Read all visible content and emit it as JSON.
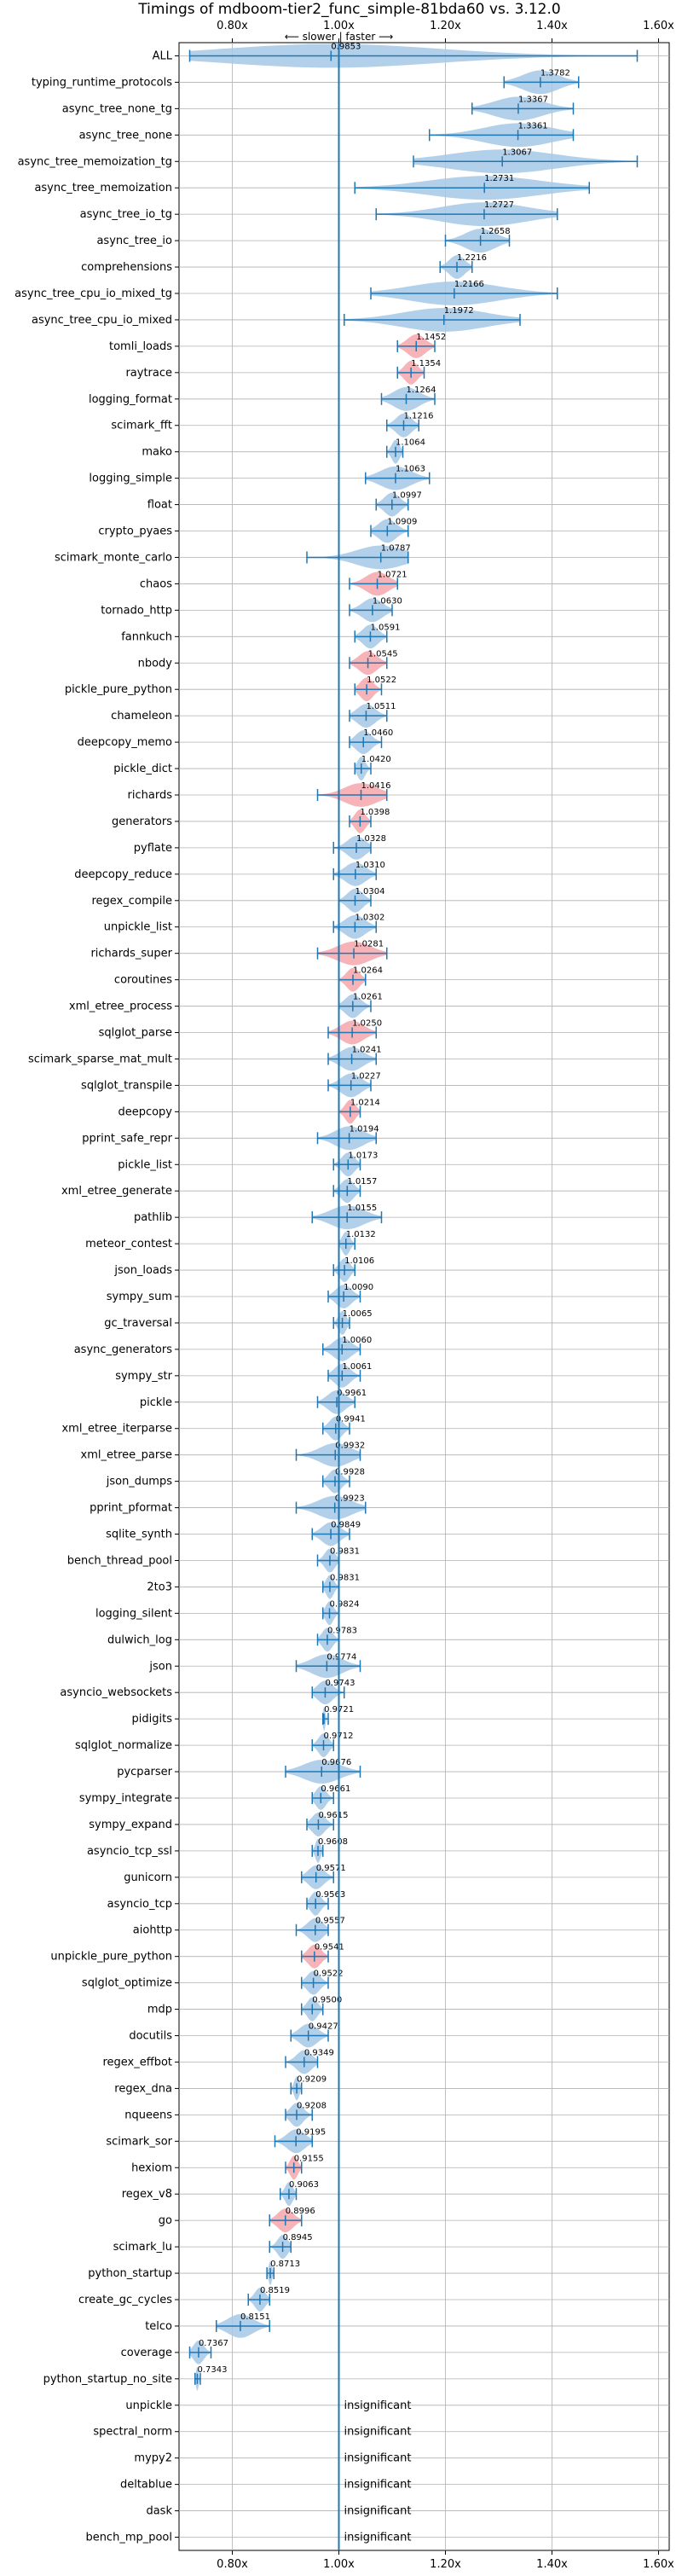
{
  "chart_data": {
    "type": "violin",
    "title": "Timings of mdboom-tier2_func_simple-81bda60 vs. 3.12.0",
    "direction_label": "⟵ slower | faster ⟶",
    "xlim": [
      0.7,
      1.62
    ],
    "xticks": [
      {
        "value": 0.8,
        "label": "0.80x"
      },
      {
        "value": 1.0,
        "label": "1.00x"
      },
      {
        "value": 1.2,
        "label": "1.20x"
      },
      {
        "value": 1.4,
        "label": "1.40x"
      },
      {
        "value": 1.6,
        "label": "1.60x"
      }
    ],
    "reference_line": 1.0,
    "grid": true,
    "colors": {
      "violin_default": "#a6c8e6",
      "violin_highlight": "#f4a6ab",
      "whisker": "#1f77b4",
      "grid": "#b0b0b0"
    },
    "benchmarks": [
      {
        "name": "ALL",
        "mean": 0.9853,
        "label": "0.9853",
        "min": 0.72,
        "max": 1.56,
        "highlight": false
      },
      {
        "name": "typing_runtime_protocols",
        "mean": 1.3782,
        "label": "1.3782",
        "min": 1.31,
        "max": 1.45,
        "highlight": false
      },
      {
        "name": "async_tree_none_tg",
        "mean": 1.3367,
        "label": "1.3367",
        "min": 1.25,
        "max": 1.44,
        "highlight": false
      },
      {
        "name": "async_tree_none",
        "mean": 1.3361,
        "label": "1.3361",
        "min": 1.17,
        "max": 1.44,
        "highlight": false
      },
      {
        "name": "async_tree_memoization_tg",
        "mean": 1.3067,
        "label": "1.3067",
        "min": 1.14,
        "max": 1.56,
        "highlight": false
      },
      {
        "name": "async_tree_memoization",
        "mean": 1.2731,
        "label": "1.2731",
        "min": 1.03,
        "max": 1.47,
        "highlight": false
      },
      {
        "name": "async_tree_io_tg",
        "mean": 1.2727,
        "label": "1.2727",
        "min": 1.07,
        "max": 1.41,
        "highlight": false
      },
      {
        "name": "async_tree_io",
        "mean": 1.2658,
        "label": "1.2658",
        "min": 1.2,
        "max": 1.32,
        "highlight": false
      },
      {
        "name": "comprehensions",
        "mean": 1.2216,
        "label": "1.2216",
        "min": 1.19,
        "max": 1.25,
        "highlight": false
      },
      {
        "name": "async_tree_cpu_io_mixed_tg",
        "mean": 1.2166,
        "label": "1.2166",
        "min": 1.06,
        "max": 1.41,
        "highlight": false
      },
      {
        "name": "async_tree_cpu_io_mixed",
        "mean": 1.1972,
        "label": "1.1972",
        "min": 1.01,
        "max": 1.34,
        "highlight": false
      },
      {
        "name": "tomli_loads",
        "mean": 1.1452,
        "label": "1.1452",
        "min": 1.11,
        "max": 1.18,
        "highlight": true
      },
      {
        "name": "raytrace",
        "mean": 1.1354,
        "label": "1.1354",
        "min": 1.11,
        "max": 1.16,
        "highlight": true
      },
      {
        "name": "logging_format",
        "mean": 1.1264,
        "label": "1.1264",
        "min": 1.08,
        "max": 1.18,
        "highlight": false
      },
      {
        "name": "scimark_fft",
        "mean": 1.1216,
        "label": "1.1216",
        "min": 1.09,
        "max": 1.15,
        "highlight": false
      },
      {
        "name": "mako",
        "mean": 1.1064,
        "label": "1.1064",
        "min": 1.09,
        "max": 1.12,
        "highlight": false
      },
      {
        "name": "logging_simple",
        "mean": 1.1063,
        "label": "1.1063",
        "min": 1.05,
        "max": 1.17,
        "highlight": false
      },
      {
        "name": "float",
        "mean": 1.0997,
        "label": "1.0997",
        "min": 1.07,
        "max": 1.13,
        "highlight": false
      },
      {
        "name": "crypto_pyaes",
        "mean": 1.0909,
        "label": "1.0909",
        "min": 1.06,
        "max": 1.13,
        "highlight": false
      },
      {
        "name": "scimark_monte_carlo",
        "mean": 1.0787,
        "label": "1.0787",
        "min": 0.94,
        "max": 1.13,
        "highlight": false
      },
      {
        "name": "chaos",
        "mean": 1.0721,
        "label": "1.0721",
        "min": 1.02,
        "max": 1.11,
        "highlight": true
      },
      {
        "name": "tornado_http",
        "mean": 1.063,
        "label": "1.0630",
        "min": 1.02,
        "max": 1.1,
        "highlight": false
      },
      {
        "name": "fannkuch",
        "mean": 1.0591,
        "label": "1.0591",
        "min": 1.03,
        "max": 1.09,
        "highlight": false
      },
      {
        "name": "nbody",
        "mean": 1.0545,
        "label": "1.0545",
        "min": 1.02,
        "max": 1.09,
        "highlight": true
      },
      {
        "name": "pickle_pure_python",
        "mean": 1.0522,
        "label": "1.0522",
        "min": 1.03,
        "max": 1.08,
        "highlight": true
      },
      {
        "name": "chameleon",
        "mean": 1.0511,
        "label": "1.0511",
        "min": 1.02,
        "max": 1.09,
        "highlight": false
      },
      {
        "name": "deepcopy_memo",
        "mean": 1.046,
        "label": "1.0460",
        "min": 1.02,
        "max": 1.08,
        "highlight": false
      },
      {
        "name": "pickle_dict",
        "mean": 1.042,
        "label": "1.0420",
        "min": 1.03,
        "max": 1.06,
        "highlight": false
      },
      {
        "name": "richards",
        "mean": 1.0416,
        "label": "1.0416",
        "min": 0.96,
        "max": 1.09,
        "highlight": true
      },
      {
        "name": "generators",
        "mean": 1.0398,
        "label": "1.0398",
        "min": 1.02,
        "max": 1.06,
        "highlight": true
      },
      {
        "name": "pyflate",
        "mean": 1.0328,
        "label": "1.0328",
        "min": 0.99,
        "max": 1.06,
        "highlight": false
      },
      {
        "name": "deepcopy_reduce",
        "mean": 1.031,
        "label": "1.0310",
        "min": 0.99,
        "max": 1.07,
        "highlight": false
      },
      {
        "name": "regex_compile",
        "mean": 1.0304,
        "label": "1.0304",
        "min": 1.0,
        "max": 1.06,
        "highlight": false
      },
      {
        "name": "unpickle_list",
        "mean": 1.0302,
        "label": "1.0302",
        "min": 0.99,
        "max": 1.07,
        "highlight": false
      },
      {
        "name": "richards_super",
        "mean": 1.0281,
        "label": "1.0281",
        "min": 0.96,
        "max": 1.09,
        "highlight": true
      },
      {
        "name": "coroutines",
        "mean": 1.0264,
        "label": "1.0264",
        "min": 1.0,
        "max": 1.05,
        "highlight": true
      },
      {
        "name": "xml_etree_process",
        "mean": 1.0261,
        "label": "1.0261",
        "min": 1.0,
        "max": 1.06,
        "highlight": false
      },
      {
        "name": "sqlglot_parse",
        "mean": 1.025,
        "label": "1.0250",
        "min": 0.98,
        "max": 1.07,
        "highlight": true
      },
      {
        "name": "scimark_sparse_mat_mult",
        "mean": 1.0241,
        "label": "1.0241",
        "min": 0.98,
        "max": 1.07,
        "highlight": false
      },
      {
        "name": "sqlglot_transpile",
        "mean": 1.0227,
        "label": "1.0227",
        "min": 0.98,
        "max": 1.06,
        "highlight": false
      },
      {
        "name": "deepcopy",
        "mean": 1.0214,
        "label": "1.0214",
        "min": 1.0,
        "max": 1.04,
        "highlight": true
      },
      {
        "name": "pprint_safe_repr",
        "mean": 1.0194,
        "label": "1.0194",
        "min": 0.96,
        "max": 1.07,
        "highlight": false
      },
      {
        "name": "pickle_list",
        "mean": 1.0173,
        "label": "1.0173",
        "min": 0.99,
        "max": 1.04,
        "highlight": false
      },
      {
        "name": "xml_etree_generate",
        "mean": 1.0157,
        "label": "1.0157",
        "min": 0.99,
        "max": 1.04,
        "highlight": false
      },
      {
        "name": "pathlib",
        "mean": 1.0155,
        "label": "1.0155",
        "min": 0.95,
        "max": 1.08,
        "highlight": false
      },
      {
        "name": "meteor_contest",
        "mean": 1.0132,
        "label": "1.0132",
        "min": 1.0,
        "max": 1.03,
        "highlight": false
      },
      {
        "name": "json_loads",
        "mean": 1.0106,
        "label": "1.0106",
        "min": 0.99,
        "max": 1.03,
        "highlight": false
      },
      {
        "name": "sympy_sum",
        "mean": 1.009,
        "label": "1.0090",
        "min": 0.98,
        "max": 1.04,
        "highlight": false
      },
      {
        "name": "gc_traversal",
        "mean": 1.0065,
        "label": "1.0065",
        "min": 0.99,
        "max": 1.02,
        "highlight": false
      },
      {
        "name": "async_generators",
        "mean": 1.006,
        "label": "1.0060",
        "min": 0.97,
        "max": 1.04,
        "highlight": false
      },
      {
        "name": "sympy_str",
        "mean": 1.0061,
        "label": "1.0061",
        "min": 0.98,
        "max": 1.04,
        "highlight": false
      },
      {
        "name": "pickle",
        "mean": 0.9961,
        "label": "0.9961",
        "min": 0.96,
        "max": 1.03,
        "highlight": false
      },
      {
        "name": "xml_etree_iterparse",
        "mean": 0.9941,
        "label": "0.9941",
        "min": 0.97,
        "max": 1.02,
        "highlight": false
      },
      {
        "name": "xml_etree_parse",
        "mean": 0.9932,
        "label": "0.9932",
        "min": 0.92,
        "max": 1.04,
        "highlight": false
      },
      {
        "name": "json_dumps",
        "mean": 0.9928,
        "label": "0.9928",
        "min": 0.97,
        "max": 1.02,
        "highlight": false
      },
      {
        "name": "pprint_pformat",
        "mean": 0.9923,
        "label": "0.9923",
        "min": 0.92,
        "max": 1.05,
        "highlight": false
      },
      {
        "name": "sqlite_synth",
        "mean": 0.9849,
        "label": "0.9849",
        "min": 0.95,
        "max": 1.02,
        "highlight": false
      },
      {
        "name": "bench_thread_pool",
        "mean": 0.9831,
        "label": "0.9831",
        "min": 0.96,
        "max": 1.0,
        "highlight": false
      },
      {
        "name": "2to3",
        "mean": 0.9831,
        "label": "0.9831",
        "min": 0.97,
        "max": 1.0,
        "highlight": false
      },
      {
        "name": "logging_silent",
        "mean": 0.9824,
        "label": "0.9824",
        "min": 0.97,
        "max": 1.0,
        "highlight": false
      },
      {
        "name": "dulwich_log",
        "mean": 0.9783,
        "label": "0.9783",
        "min": 0.96,
        "max": 1.0,
        "highlight": false
      },
      {
        "name": "json",
        "mean": 0.9774,
        "label": "0.9774",
        "min": 0.92,
        "max": 1.04,
        "highlight": false
      },
      {
        "name": "asyncio_websockets",
        "mean": 0.9743,
        "label": "0.9743",
        "min": 0.95,
        "max": 1.01,
        "highlight": false
      },
      {
        "name": "pidigits",
        "mean": 0.9721,
        "label": "0.9721",
        "min": 0.97,
        "max": 0.98,
        "highlight": false
      },
      {
        "name": "sqlglot_normalize",
        "mean": 0.9712,
        "label": "0.9712",
        "min": 0.95,
        "max": 0.99,
        "highlight": false
      },
      {
        "name": "pycparser",
        "mean": 0.9676,
        "label": "0.9676",
        "min": 0.9,
        "max": 1.04,
        "highlight": false
      },
      {
        "name": "sympy_integrate",
        "mean": 0.9661,
        "label": "0.9661",
        "min": 0.95,
        "max": 0.99,
        "highlight": false
      },
      {
        "name": "sympy_expand",
        "mean": 0.9615,
        "label": "0.9615",
        "min": 0.94,
        "max": 0.99,
        "highlight": false
      },
      {
        "name": "asyncio_tcp_ssl",
        "mean": 0.9608,
        "label": "0.9608",
        "min": 0.95,
        "max": 0.97,
        "highlight": false
      },
      {
        "name": "gunicorn",
        "mean": 0.9571,
        "label": "0.9571",
        "min": 0.93,
        "max": 0.99,
        "highlight": false
      },
      {
        "name": "asyncio_tcp",
        "mean": 0.9563,
        "label": "0.9563",
        "min": 0.94,
        "max": 0.98,
        "highlight": false
      },
      {
        "name": "aiohttp",
        "mean": 0.9557,
        "label": "0.9557",
        "min": 0.92,
        "max": 0.98,
        "highlight": false
      },
      {
        "name": "unpickle_pure_python",
        "mean": 0.9541,
        "label": "0.9541",
        "min": 0.93,
        "max": 0.98,
        "highlight": true
      },
      {
        "name": "sqlglot_optimize",
        "mean": 0.9522,
        "label": "0.9522",
        "min": 0.93,
        "max": 0.98,
        "highlight": false
      },
      {
        "name": "mdp",
        "mean": 0.95,
        "label": "0.9500",
        "min": 0.93,
        "max": 0.97,
        "highlight": false
      },
      {
        "name": "docutils",
        "mean": 0.9427,
        "label": "0.9427",
        "min": 0.91,
        "max": 0.98,
        "highlight": false
      },
      {
        "name": "regex_effbot",
        "mean": 0.9349,
        "label": "0.9349",
        "min": 0.9,
        "max": 0.96,
        "highlight": false
      },
      {
        "name": "regex_dna",
        "mean": 0.9209,
        "label": "0.9209",
        "min": 0.91,
        "max": 0.93,
        "highlight": false
      },
      {
        "name": "nqueens",
        "mean": 0.9208,
        "label": "0.9208",
        "min": 0.9,
        "max": 0.95,
        "highlight": false
      },
      {
        "name": "scimark_sor",
        "mean": 0.9195,
        "label": "0.9195",
        "min": 0.88,
        "max": 0.95,
        "highlight": false
      },
      {
        "name": "hexiom",
        "mean": 0.9155,
        "label": "0.9155",
        "min": 0.9,
        "max": 0.93,
        "highlight": true
      },
      {
        "name": "regex_v8",
        "mean": 0.9063,
        "label": "0.9063",
        "min": 0.89,
        "max": 0.92,
        "highlight": false
      },
      {
        "name": "go",
        "mean": 0.8996,
        "label": "0.8996",
        "min": 0.87,
        "max": 0.93,
        "highlight": true
      },
      {
        "name": "scimark_lu",
        "mean": 0.8945,
        "label": "0.8945",
        "min": 0.87,
        "max": 0.91,
        "highlight": false
      },
      {
        "name": "python_startup",
        "mean": 0.8713,
        "label": "0.8713",
        "min": 0.865,
        "max": 0.878,
        "highlight": false
      },
      {
        "name": "create_gc_cycles",
        "mean": 0.8519,
        "label": "0.8519",
        "min": 0.83,
        "max": 0.87,
        "highlight": false
      },
      {
        "name": "telco",
        "mean": 0.8151,
        "label": "0.8151",
        "min": 0.77,
        "max": 0.87,
        "highlight": false
      },
      {
        "name": "coverage",
        "mean": 0.7367,
        "label": "0.7367",
        "min": 0.72,
        "max": 0.76,
        "highlight": false
      },
      {
        "name": "python_startup_no_site",
        "mean": 0.7343,
        "label": "0.7343",
        "min": 0.73,
        "max": 0.74,
        "highlight": false
      },
      {
        "name": "unpickle",
        "insignificant": true
      },
      {
        "name": "spectral_norm",
        "insignificant": true
      },
      {
        "name": "mypy2",
        "insignificant": true
      },
      {
        "name": "deltablue",
        "insignificant": true
      },
      {
        "name": "dask",
        "insignificant": true
      },
      {
        "name": "bench_mp_pool",
        "insignificant": true
      }
    ],
    "insignificant_label": "insignificant"
  }
}
